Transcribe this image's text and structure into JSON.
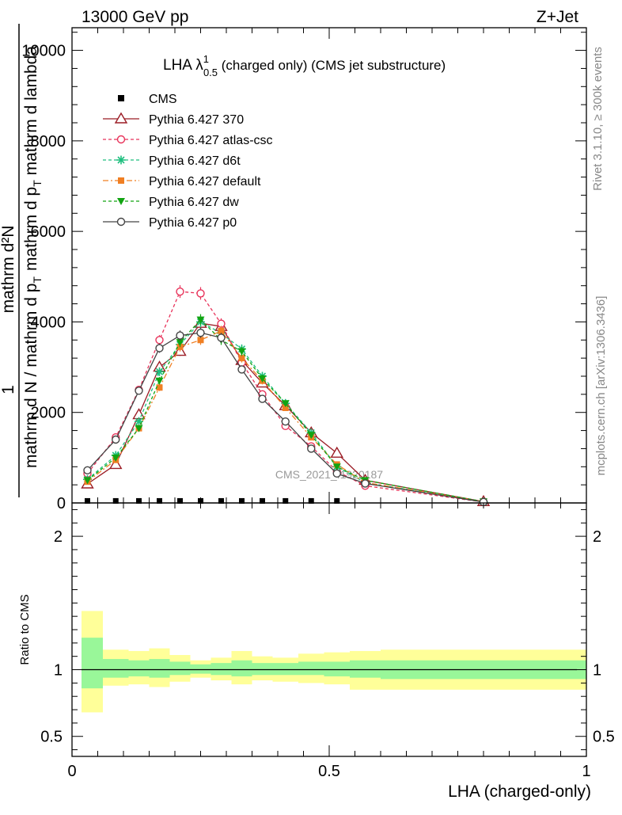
{
  "header": {
    "left": "13000 GeV pp",
    "right": "Z+Jet"
  },
  "side_labels": {
    "rivet": "Rivet 3.1.10, ≥ 300k events",
    "mcplots": "mcplots.cern.ch [arXiv:1306.3436]"
  },
  "watermark": "CMS_2021_I1920187",
  "main_ylabel": {
    "line1": "mathrm d²N",
    "line1_sup": "2",
    "line2": "mathrm d p",
    "line2_sub": "T",
    "line2_tail": " mathrm d lambda",
    "one": "1",
    "den1": "mathrm d N / mathrm d p",
    "den1_sub": "T"
  },
  "ratio_ylabel": "Ratio to CMS",
  "xlabel": "LHA (charged-only)",
  "colors": {
    "cms": "#000000",
    "py370": "#9b1c25",
    "atlas": "#e8335a",
    "d6t": "#1fbf7f",
    "default": "#f07f23",
    "dw": "#12a412",
    "p0": "#444444",
    "band_inner": "#99f799",
    "band_outer": "#ffff99"
  },
  "chart_data": [
    {
      "type": "line",
      "title": "LHA λ¹₀.₅ (charged only) (CMS jet substructure)",
      "title_parts": {
        "pre": "LHA λ",
        "sup": "1",
        "sub": "0.5",
        "post": "(charged only) (CMS jet substructure)"
      },
      "xlim": [
        0,
        1
      ],
      "ylim": [
        0,
        10500
      ],
      "yticks": [
        0,
        2000,
        4000,
        6000,
        8000,
        10000
      ],
      "ytick_labels": [
        "0",
        "2000",
        "4000",
        "6000",
        "8000",
        "10000"
      ],
      "grid": false,
      "legend_position": "top-left",
      "cms": {
        "name": "CMS",
        "x": [
          0.03,
          0.085,
          0.13,
          0.17,
          0.21,
          0.25,
          0.29,
          0.33,
          0.37,
          0.415,
          0.465,
          0.515
        ],
        "y": [
          10,
          10,
          10,
          10,
          10,
          10,
          10,
          10,
          10,
          10,
          10,
          10
        ]
      },
      "series": [
        {
          "name": "Pythia 6.427 370",
          "key": "py370",
          "marker": "triangle-open",
          "dash": "",
          "x": [
            0.03,
            0.085,
            0.13,
            0.17,
            0.21,
            0.25,
            0.29,
            0.33,
            0.37,
            0.415,
            0.465,
            0.515,
            0.57,
            0.8
          ],
          "y": [
            420,
            850,
            1950,
            3000,
            3350,
            3970,
            3900,
            3150,
            2650,
            2150,
            1550,
            1100,
            500,
            30
          ]
        },
        {
          "name": "Pythia 6.427 atlas-csc",
          "key": "atlas",
          "marker": "circle-open",
          "dash": "4,3",
          "x": [
            0.03,
            0.085,
            0.13,
            0.17,
            0.21,
            0.25,
            0.29,
            0.33,
            0.37,
            0.415,
            0.465,
            0.515,
            0.57,
            0.8
          ],
          "y": [
            650,
            1450,
            2500,
            3600,
            4670,
            4630,
            3960,
            3100,
            2400,
            1700,
            1250,
            700,
            380,
            20
          ]
        },
        {
          "name": "Pythia 6.427 d6t",
          "key": "d6t",
          "marker": "star",
          "dash": "4,3",
          "x": [
            0.03,
            0.085,
            0.13,
            0.17,
            0.21,
            0.25,
            0.29,
            0.33,
            0.37,
            0.415,
            0.465,
            0.515,
            0.57,
            0.8
          ],
          "y": [
            520,
            1050,
            1800,
            2900,
            3500,
            4000,
            3750,
            3400,
            2800,
            2200,
            1550,
            800,
            450,
            25
          ]
        },
        {
          "name": "Pythia 6.427 default",
          "key": "default",
          "marker": "square-filled",
          "dash": "7,3,2,3",
          "x": [
            0.03,
            0.085,
            0.13,
            0.17,
            0.21,
            0.25,
            0.29,
            0.33,
            0.37,
            0.415,
            0.465,
            0.515,
            0.57,
            0.8
          ],
          "y": [
            470,
            950,
            1650,
            2550,
            3450,
            3600,
            3800,
            3200,
            2700,
            2100,
            1450,
            850,
            450,
            30
          ]
        },
        {
          "name": "Pythia 6.427 dw",
          "key": "dw",
          "marker": "triangle-down-filled",
          "dash": "4,3",
          "x": [
            0.03,
            0.085,
            0.13,
            0.17,
            0.21,
            0.25,
            0.29,
            0.33,
            0.37,
            0.415,
            0.465,
            0.515,
            0.57,
            0.8
          ],
          "y": [
            500,
            1000,
            1650,
            2700,
            3550,
            4050,
            3600,
            3350,
            2750,
            2200,
            1500,
            800,
            500,
            30
          ]
        },
        {
          "name": "Pythia 6.427 p0",
          "key": "p0",
          "marker": "circle-open",
          "dash": "",
          "x": [
            0.03,
            0.085,
            0.13,
            0.17,
            0.21,
            0.25,
            0.29,
            0.33,
            0.37,
            0.415,
            0.465,
            0.515,
            0.57,
            0.8
          ],
          "y": [
            720,
            1400,
            2480,
            3420,
            3700,
            3760,
            3650,
            2950,
            2300,
            1800,
            1200,
            650,
            430,
            20
          ]
        }
      ]
    },
    {
      "type": "area",
      "title": "",
      "ylabel": "Ratio to CMS",
      "xlabel": "LHA (charged-only)",
      "xlim": [
        0,
        1
      ],
      "ylim": [
        0.35,
        2.25
      ],
      "yticks": [
        0.5,
        1,
        2
      ],
      "ytick_labels": [
        "0.5",
        "1",
        "2"
      ],
      "xticks": [
        0,
        0.5,
        1
      ],
      "xtick_labels": [
        "0",
        "0.5",
        "1"
      ],
      "bins": [
        0,
        0.06,
        0.11,
        0.15,
        0.19,
        0.23,
        0.27,
        0.31,
        0.35,
        0.39,
        0.44,
        0.49,
        0.54,
        0.6,
        1.0
      ],
      "inner_band": {
        "lo": [
          0.86,
          0.94,
          0.95,
          0.94,
          0.96,
          0.97,
          0.96,
          0.95,
          0.96,
          0.96,
          0.96,
          0.95,
          0.94,
          0.93
        ],
        "hi": [
          1.24,
          1.08,
          1.07,
          1.08,
          1.06,
          1.04,
          1.05,
          1.07,
          1.05,
          1.05,
          1.06,
          1.06,
          1.07,
          1.07
        ]
      },
      "outer_band": {
        "lo": [
          0.68,
          0.88,
          0.89,
          0.87,
          0.91,
          0.94,
          0.92,
          0.89,
          0.92,
          0.91,
          0.9,
          0.89,
          0.85,
          0.85
        ],
        "hi": [
          1.44,
          1.15,
          1.14,
          1.16,
          1.11,
          1.07,
          1.09,
          1.14,
          1.1,
          1.09,
          1.12,
          1.13,
          1.14,
          1.15
        ]
      },
      "reference": 1
    }
  ]
}
